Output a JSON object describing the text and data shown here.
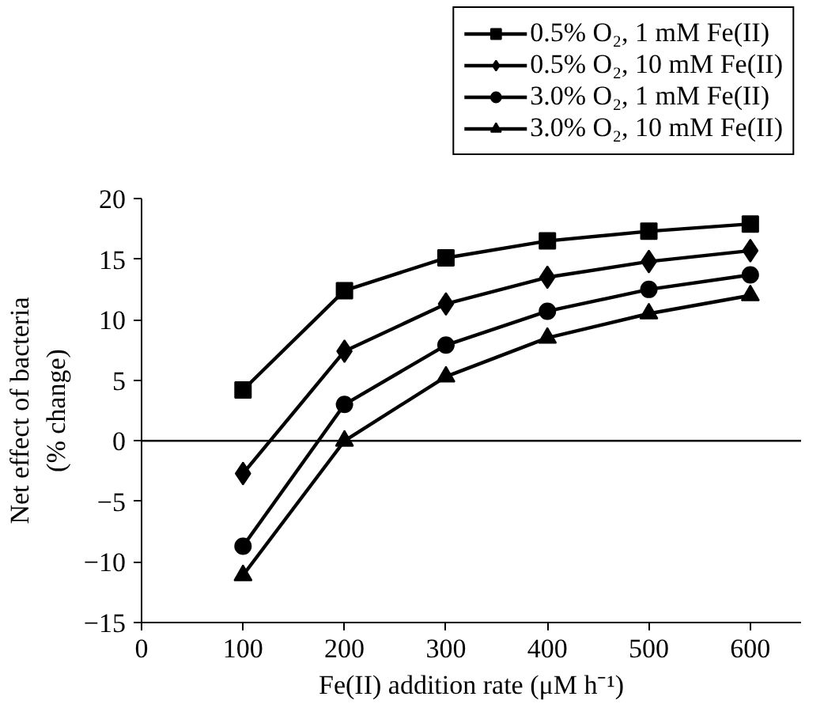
{
  "chart_data": {
    "type": "line",
    "xlabel": "Fe(II) addition rate (μM h⁻¹)",
    "ylabel": "Net effect of bacteria\n(% change)",
    "x": [
      100,
      200,
      300,
      400,
      500,
      600
    ],
    "xlim": [
      0,
      650
    ],
    "xticks": [
      0,
      100,
      200,
      300,
      400,
      500,
      600
    ],
    "ylim": [
      -15,
      20
    ],
    "yticks": [
      -15,
      -10,
      -5,
      0,
      5,
      10,
      15,
      20
    ],
    "grid": false,
    "legend": "top right",
    "line_style": "solid",
    "ref_lines": [
      {
        "axis": "y",
        "value": 0,
        "color": "#000000"
      }
    ],
    "series": [
      {
        "name": "0.5% O₂, 1 mM Fe(II)",
        "color": "#000000",
        "marker": "square",
        "values": [
          4.2,
          12.4,
          15.1,
          16.5,
          17.3,
          17.9
        ]
      },
      {
        "name": "0.5% O₂, 10 mM Fe(II)",
        "color": "#000000",
        "marker": "diamond",
        "values": [
          -2.7,
          7.4,
          11.3,
          13.5,
          14.8,
          15.7
        ]
      },
      {
        "name": "3.0% O₂, 1 mM Fe(II)",
        "color": "#000000",
        "marker": "circle",
        "values": [
          -8.7,
          3.0,
          7.9,
          10.7,
          12.5,
          13.7
        ]
      },
      {
        "name": "3.0% O₂, 10 mM Fe(II)",
        "color": "#000000",
        "marker": "triangle",
        "values": [
          -11.1,
          0,
          5.3,
          8.5,
          10.5,
          12.0
        ]
      }
    ]
  }
}
